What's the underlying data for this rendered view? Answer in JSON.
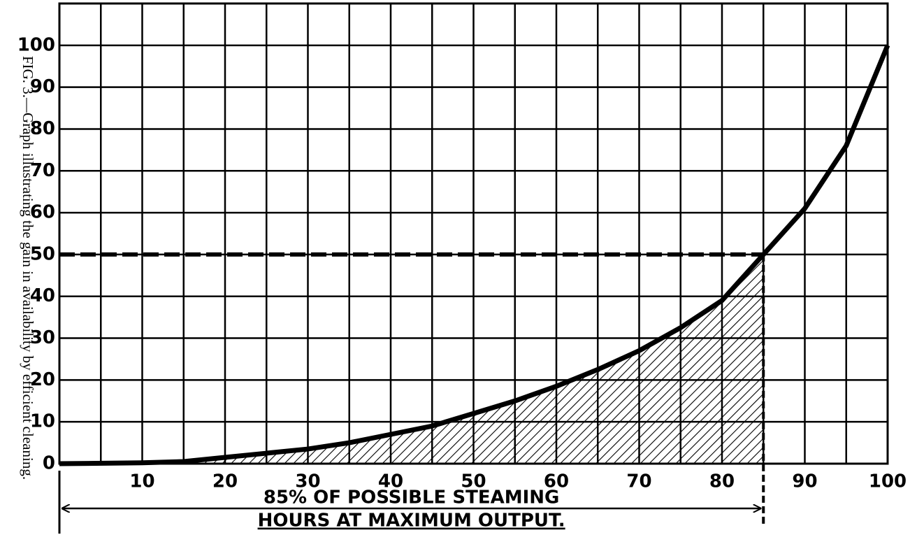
{
  "chart_data": {
    "type": "line",
    "caption": "FIG. 3.—Graph illustrating the gain in availability by efficient cleaning.",
    "x": [
      0,
      10,
      15,
      20,
      25,
      30,
      35,
      40,
      45,
      50,
      55,
      60,
      65,
      70,
      75,
      80,
      85,
      90,
      95,
      100
    ],
    "values": [
      0,
      0.2,
      0.5,
      1.5,
      2.5,
      3.5,
      5,
      7,
      9,
      12,
      15,
      18.5,
      22.5,
      27,
      32.5,
      39,
      50,
      61,
      76,
      100
    ],
    "color": "#000000",
    "xlim": [
      0,
      100
    ],
    "ylim": [
      0,
      110
    ],
    "xticks": [
      10,
      20,
      30,
      40,
      50,
      60,
      70,
      80,
      90,
      100
    ],
    "minor_xticks": [
      5,
      15,
      25,
      35,
      45,
      55,
      65,
      75,
      85,
      95
    ],
    "yticks": [
      0,
      10,
      20,
      30,
      40,
      50,
      60,
      70,
      80,
      90,
      100
    ],
    "reference": {
      "x": 85,
      "y": 50
    },
    "annotation": [
      "85% OF POSSIBLE STEAMING",
      "HOURS AT MAXIMUM OUTPUT."
    ],
    "grid": true
  }
}
